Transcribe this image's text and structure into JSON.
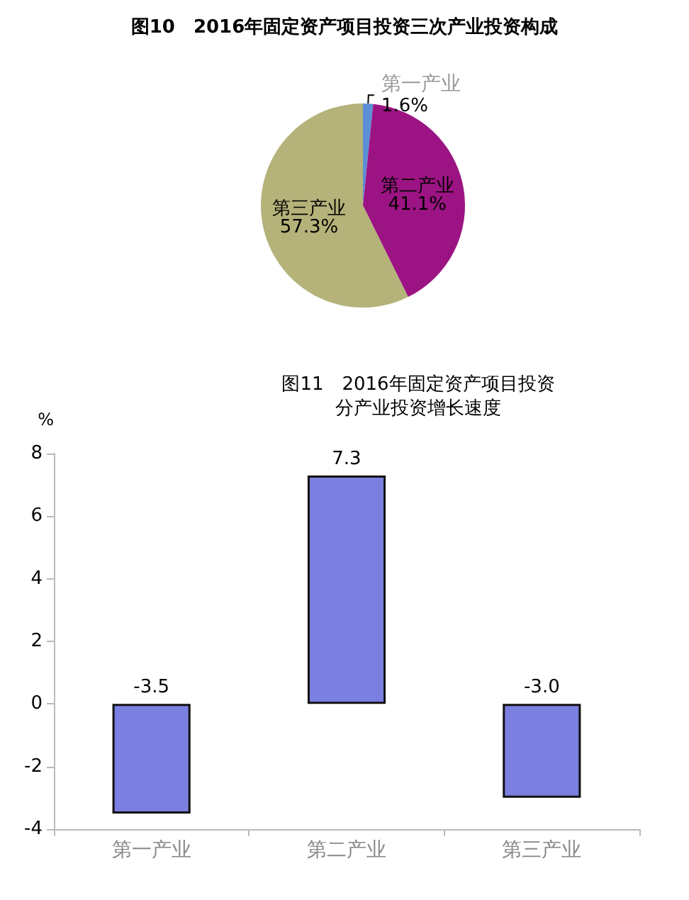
{
  "chart_data": [
    {
      "type": "pie",
      "title": "图10　2016年固定资产项目投资三次产业投资构成",
      "categories": [
        "第一产业",
        "第二产业",
        "第三产业"
      ],
      "values": [
        1.6,
        41.1,
        57.3
      ],
      "colors": [
        "#5b8fd6",
        "#9c1483",
        "#b5b27a"
      ],
      "value_labels": [
        "1.6%",
        "41.1%",
        "57.3%"
      ]
    },
    {
      "type": "bar",
      "title": "图11　2016年固定资产项目投资",
      "subtitle": "分产业投资增长速度",
      "ylabel": "%",
      "categories": [
        "第一产业",
        "第二产业",
        "第三产业"
      ],
      "values": [
        -3.5,
        7.3,
        -3.0
      ],
      "color": "#7b7fdf",
      "ylim": [
        -4,
        8
      ],
      "yticks": [
        -4,
        -2,
        0,
        2,
        4,
        6,
        8
      ],
      "value_labels": [
        "-3.5",
        "7.3",
        "-3.0"
      ],
      "grid": false
    }
  ]
}
